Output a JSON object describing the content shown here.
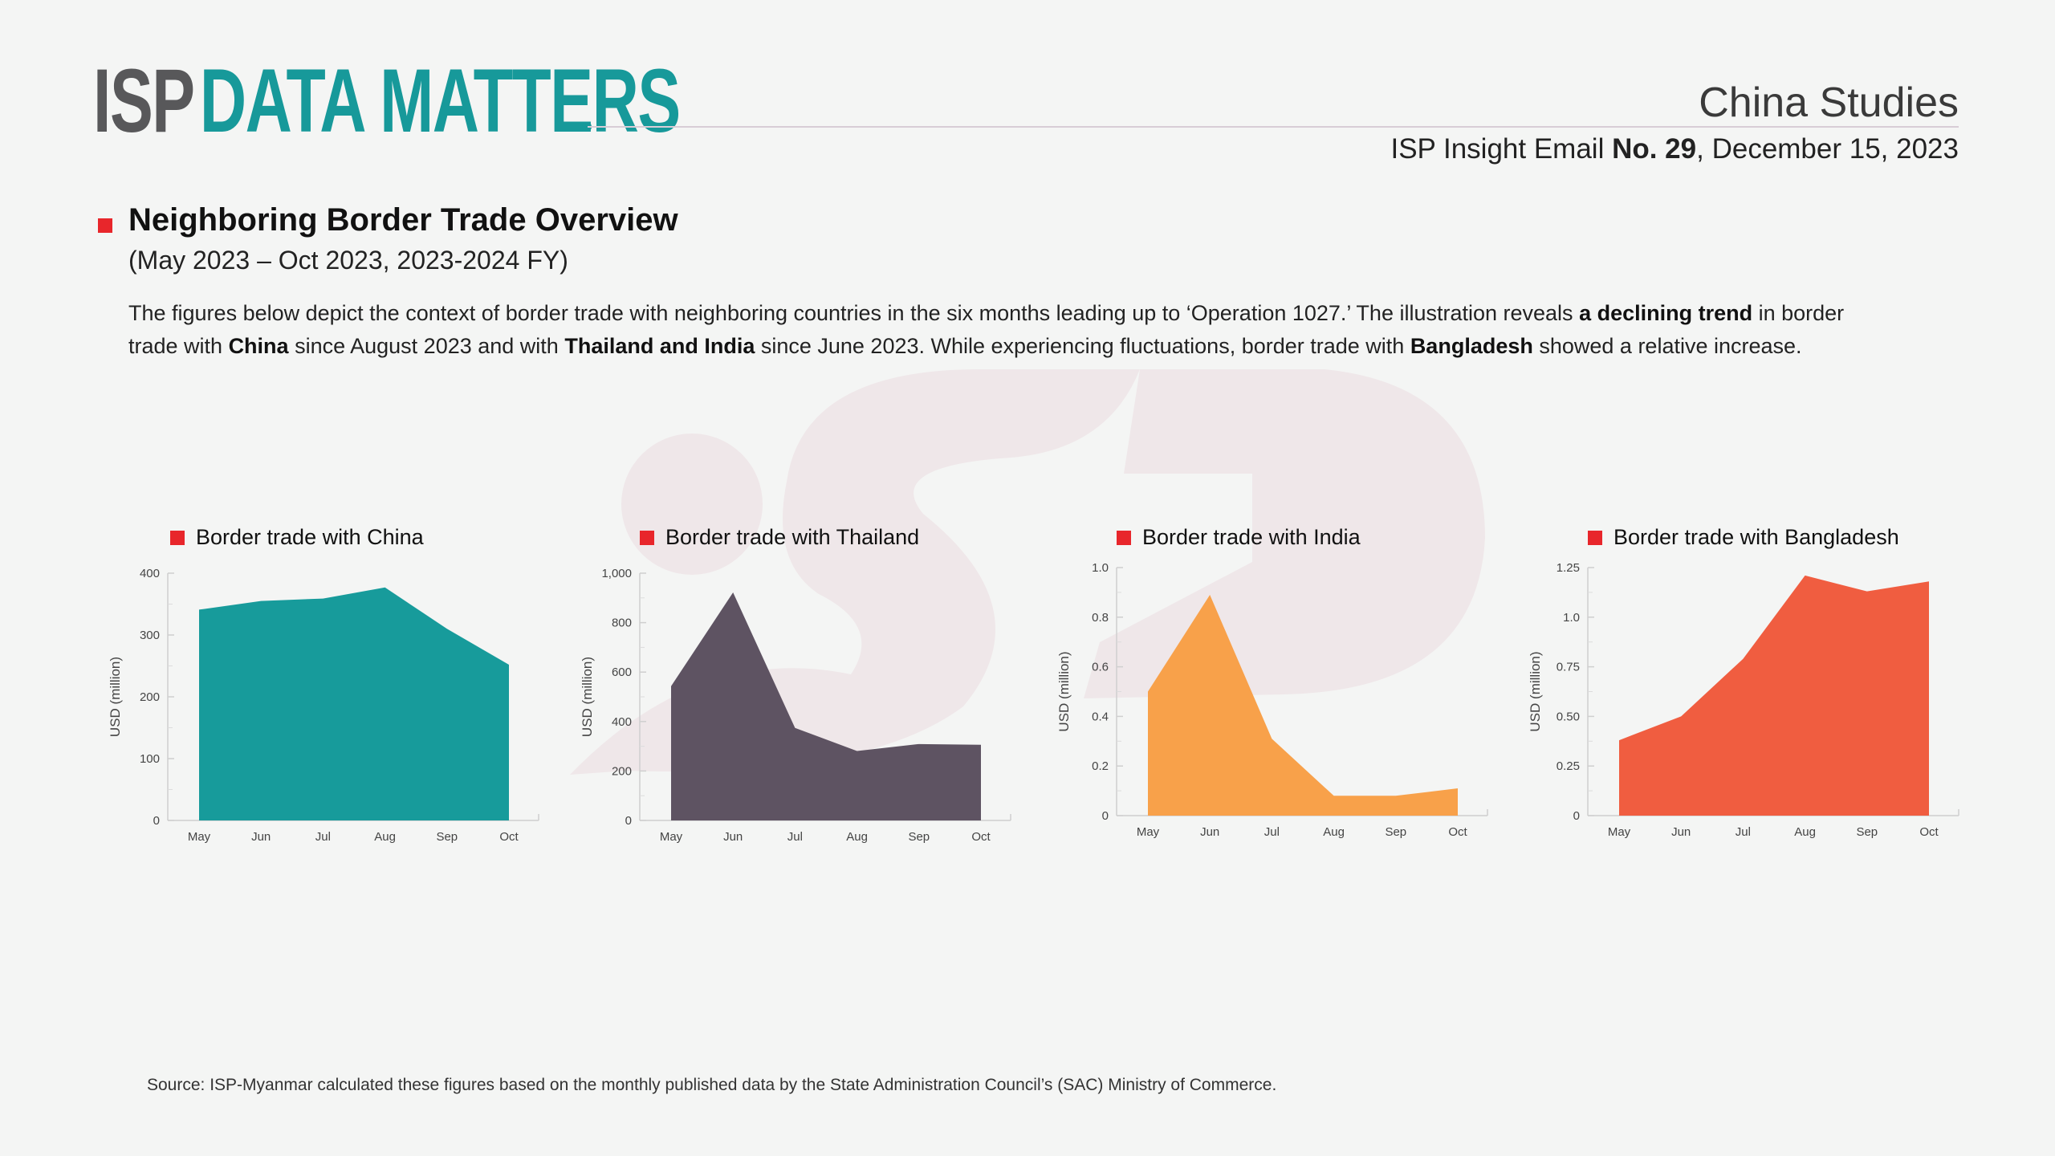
{
  "header": {
    "logo_part1": "ISP",
    "logo_part2": "DATA MATTERS",
    "section": "China Studies",
    "issue_prefix": "ISP Insight Email ",
    "issue_number": "No. 29",
    "issue_date": ", December 15, 2023"
  },
  "title": "Neighboring Border Trade Overview",
  "subtitle": "(May 2023 – Oct 2023, 2023-2024 FY)",
  "paragraph": [
    {
      "text": "The figures below depict the context of border trade with neighboring countries in the six months leading up to ‘Operation 1027.’ The illustration reveals ",
      "bold": false
    },
    {
      "text": "a declining trend",
      "bold": true
    },
    {
      "text": " in border trade with ",
      "bold": false
    },
    {
      "text": "China",
      "bold": true
    },
    {
      "text": " since August 2023 and with ",
      "bold": false
    },
    {
      "text": "Thailand and India",
      "bold": true
    },
    {
      "text": " since June 2023. While experiencing fluctuations, border trade with ",
      "bold": false
    },
    {
      "text": "Bangladesh",
      "bold": true
    },
    {
      "text": " showed a relative increase.",
      "bold": false
    }
  ],
  "source": "Source: ISP-Myanmar calculated these figures based on the monthly published data by the State Administration Council’s (SAC) Ministry of Commerce.",
  "chart_data": [
    {
      "type": "area",
      "title": "Border trade with China",
      "ylabel": "USD (million)",
      "categories": [
        "May",
        "Jun",
        "Jul",
        "Aug",
        "Sep",
        "Oct"
      ],
      "values": [
        341,
        355,
        359,
        377,
        310,
        252
      ],
      "ylim": [
        0,
        400
      ],
      "yticks": [
        "0",
        "100",
        "200",
        "300",
        "400"
      ],
      "ytick_values": [
        0,
        100,
        200,
        300,
        400
      ],
      "color": "#179b9b"
    },
    {
      "type": "area",
      "title": "Border trade with Thailand",
      "ylabel": "USD (million)",
      "categories": [
        "May",
        "Jun",
        "Jul",
        "Aug",
        "Sep",
        "Oct"
      ],
      "values": [
        543,
        922,
        374,
        281,
        309,
        306
      ],
      "ylim": [
        0,
        1000
      ],
      "yticks": [
        "0",
        "200",
        "400",
        "600",
        "800",
        "1,000"
      ],
      "ytick_values": [
        0,
        200,
        400,
        600,
        800,
        1000
      ],
      "color": "#5e5362"
    },
    {
      "type": "area",
      "title": "Border trade with India",
      "ylabel": "USD (million)",
      "categories": [
        "May",
        "Jun",
        "Jul",
        "Aug",
        "Sep",
        "Oct"
      ],
      "values": [
        0.5,
        0.89,
        0.31,
        0.08,
        0.08,
        0.11
      ],
      "ylim": [
        0,
        1.0
      ],
      "yticks": [
        "0",
        "0.2",
        "0.4",
        "0.6",
        "0.8",
        "1.0"
      ],
      "ytick_values": [
        0,
        0.2,
        0.4,
        0.6,
        0.8,
        1.0
      ],
      "color": "#f8a14a"
    },
    {
      "type": "area",
      "title": "Border trade with Bangladesh",
      "ylabel": "USD (million)",
      "categories": [
        "May",
        "Jun",
        "Jul",
        "Aug",
        "Sep",
        "Oct"
      ],
      "values": [
        0.38,
        0.5,
        0.79,
        1.21,
        1.13,
        1.18
      ],
      "ylim": [
        0,
        1.25
      ],
      "yticks": [
        "0",
        "0.25",
        "0.50",
        "0.75",
        "1.0",
        "1.25"
      ],
      "ytick_values": [
        0,
        0.25,
        0.5,
        0.75,
        1.0,
        1.25
      ],
      "color": "#f05d40"
    }
  ]
}
